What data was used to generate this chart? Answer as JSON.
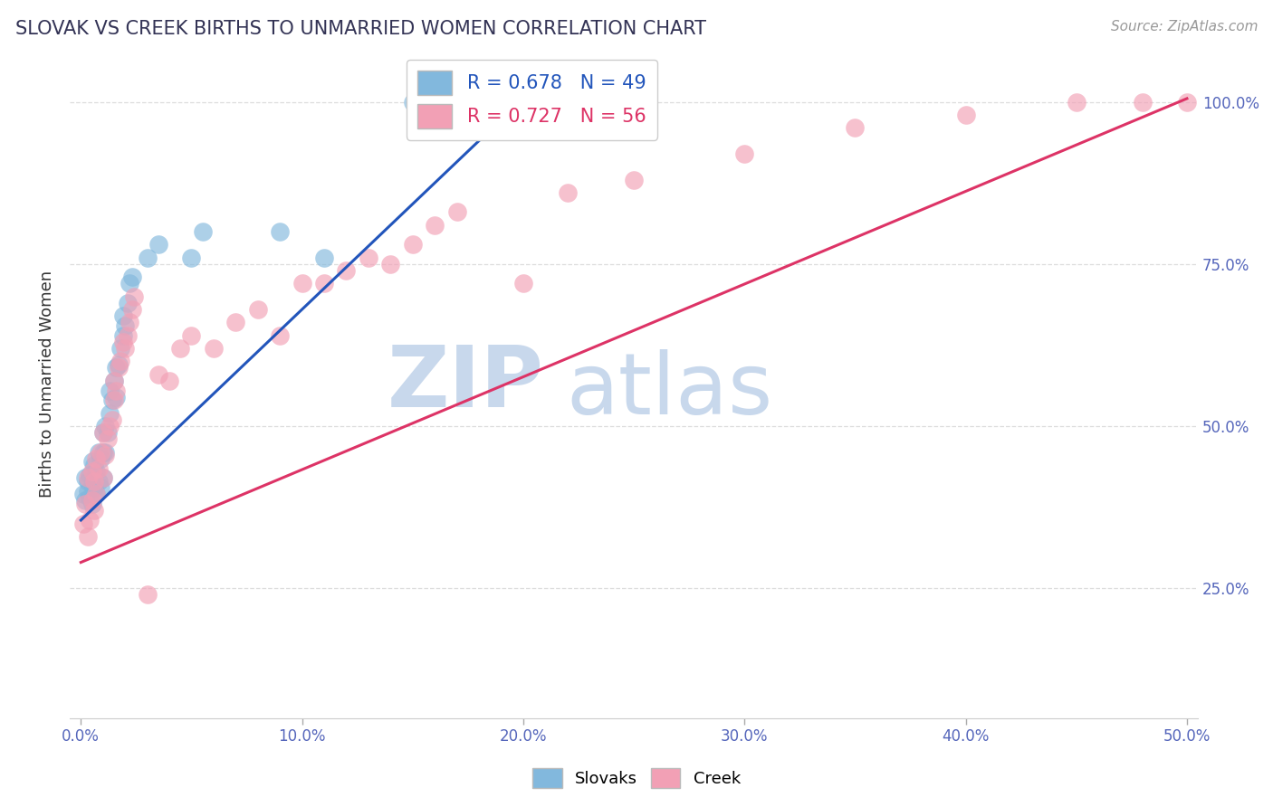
{
  "title": "SLOVAK VS CREEK BIRTHS TO UNMARRIED WOMEN CORRELATION CHART",
  "source_text": "Source: ZipAtlas.com",
  "ylabel": "Births to Unmarried Women",
  "xlim": [
    -0.005,
    0.505
  ],
  "ylim": [
    0.05,
    1.08
  ],
  "xtick_labels": [
    "0.0%",
    "10.0%",
    "20.0%",
    "30.0%",
    "40.0%",
    "50.0%"
  ],
  "xtick_values": [
    0.0,
    0.1,
    0.2,
    0.3,
    0.4,
    0.5
  ],
  "ytick_labels": [
    "25.0%",
    "50.0%",
    "75.0%",
    "100.0%"
  ],
  "ytick_values": [
    0.25,
    0.5,
    0.75,
    1.0
  ],
  "blue_color": "#82B8DD",
  "pink_color": "#F2A0B5",
  "blue_line_color": "#2255BB",
  "pink_line_color": "#DD3366",
  "blue_label": "Slovaks",
  "pink_label": "Creek",
  "blue_R": 0.678,
  "blue_N": 49,
  "pink_R": 0.727,
  "pink_N": 56,
  "watermark": "ZIPatlas",
  "watermark_color": "#C8D8EC",
  "background_color": "#FFFFFF",
  "blue_trend_x0": 0.0,
  "blue_trend_y0": 0.355,
  "blue_trend_x1": 0.2,
  "blue_trend_y1": 1.005,
  "pink_trend_x0": 0.0,
  "pink_trend_y0": 0.29,
  "pink_trend_x1": 0.5,
  "pink_trend_y1": 1.005,
  "blue_x": [
    0.001,
    0.002,
    0.002,
    0.003,
    0.003,
    0.004,
    0.004,
    0.005,
    0.005,
    0.005,
    0.006,
    0.006,
    0.007,
    0.007,
    0.008,
    0.008,
    0.009,
    0.009,
    0.01,
    0.01,
    0.01,
    0.011,
    0.011,
    0.012,
    0.013,
    0.013,
    0.014,
    0.015,
    0.016,
    0.016,
    0.017,
    0.018,
    0.019,
    0.019,
    0.02,
    0.021,
    0.022,
    0.023,
    0.03,
    0.035,
    0.05,
    0.055,
    0.09,
    0.11,
    0.15,
    0.17,
    0.18,
    0.185,
    0.19
  ],
  "blue_y": [
    0.395,
    0.385,
    0.42,
    0.4,
    0.415,
    0.39,
    0.425,
    0.38,
    0.41,
    0.445,
    0.405,
    0.44,
    0.395,
    0.43,
    0.415,
    0.46,
    0.405,
    0.45,
    0.42,
    0.46,
    0.49,
    0.46,
    0.5,
    0.49,
    0.52,
    0.555,
    0.54,
    0.57,
    0.59,
    0.545,
    0.595,
    0.62,
    0.64,
    0.67,
    0.655,
    0.69,
    0.72,
    0.73,
    0.76,
    0.78,
    0.76,
    0.8,
    0.8,
    0.76,
    1.0,
    1.0,
    1.0,
    1.0,
    1.0
  ],
  "pink_x": [
    0.001,
    0.002,
    0.003,
    0.003,
    0.004,
    0.005,
    0.005,
    0.006,
    0.006,
    0.007,
    0.007,
    0.008,
    0.009,
    0.01,
    0.01,
    0.011,
    0.012,
    0.013,
    0.014,
    0.015,
    0.015,
    0.016,
    0.017,
    0.018,
    0.019,
    0.02,
    0.021,
    0.022,
    0.023,
    0.024,
    0.03,
    0.035,
    0.04,
    0.045,
    0.05,
    0.06,
    0.07,
    0.08,
    0.09,
    0.1,
    0.11,
    0.12,
    0.13,
    0.14,
    0.15,
    0.16,
    0.17,
    0.2,
    0.22,
    0.25,
    0.3,
    0.35,
    0.4,
    0.45,
    0.48,
    0.5
  ],
  "pink_y": [
    0.35,
    0.38,
    0.33,
    0.42,
    0.355,
    0.385,
    0.43,
    0.37,
    0.415,
    0.395,
    0.45,
    0.435,
    0.46,
    0.42,
    0.49,
    0.455,
    0.48,
    0.5,
    0.51,
    0.54,
    0.57,
    0.555,
    0.59,
    0.6,
    0.63,
    0.62,
    0.64,
    0.66,
    0.68,
    0.7,
    0.24,
    0.58,
    0.57,
    0.62,
    0.64,
    0.62,
    0.66,
    0.68,
    0.64,
    0.72,
    0.72,
    0.74,
    0.76,
    0.75,
    0.78,
    0.81,
    0.83,
    0.72,
    0.86,
    0.88,
    0.92,
    0.96,
    0.98,
    1.0,
    1.0,
    1.0
  ]
}
